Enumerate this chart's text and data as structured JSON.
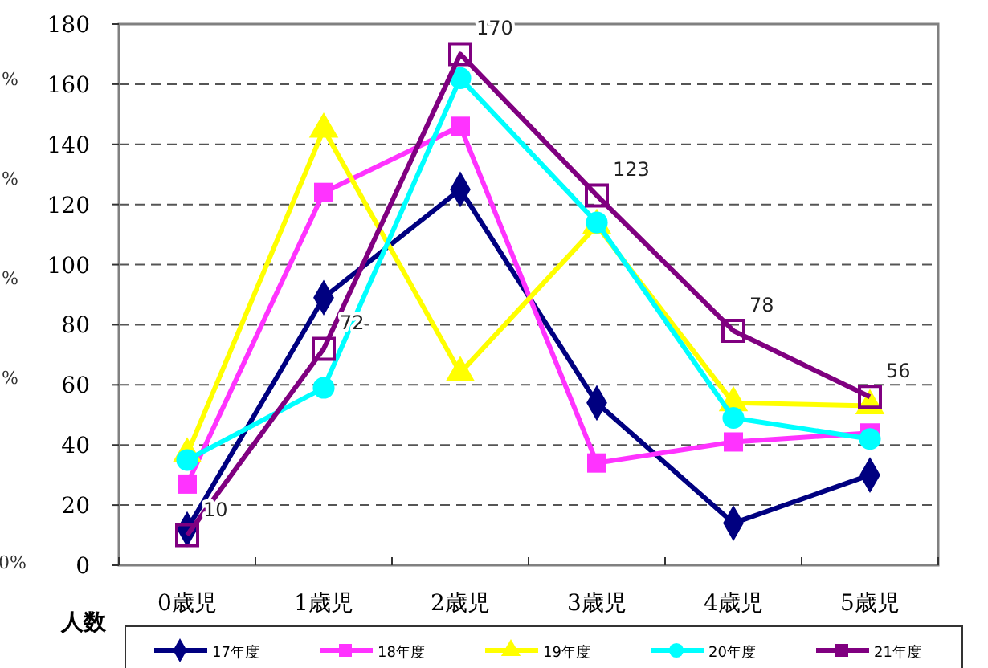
{
  "chart_data": {
    "type": "line",
    "categories": [
      "0歳児",
      "1歳児",
      "2歳児",
      "3歳児",
      "4歳児",
      "5歳児"
    ],
    "ylabel": "人数",
    "ylim": [
      0,
      180
    ],
    "yticks": [
      0,
      20,
      40,
      60,
      80,
      100,
      120,
      140,
      160,
      180
    ],
    "grid": "y",
    "legend": "bottom",
    "line_style": "solid",
    "series": [
      {
        "name": "17年度",
        "color": "#000080",
        "marker": "diamond",
        "values": [
          12,
          89,
          125,
          54,
          14,
          30
        ]
      },
      {
        "name": "18年度",
        "color": "#ff33ff",
        "marker": "square",
        "values": [
          27,
          124,
          146,
          34,
          41,
          44
        ]
      },
      {
        "name": "19年度",
        "color": "#ffff00",
        "marker": "triangle",
        "values": [
          37,
          145,
          64,
          113,
          54,
          53
        ]
      },
      {
        "name": "20年度",
        "color": "#00ffff",
        "marker": "circle",
        "values": [
          35,
          59,
          162,
          114,
          49,
          42
        ]
      },
      {
        "name": "21年度",
        "color": "#800080",
        "marker": "square",
        "values": [
          10,
          72,
          170,
          123,
          78,
          56
        ],
        "value_labels": [
          "10",
          "72",
          "170",
          "123",
          "78",
          "56"
        ]
      }
    ],
    "annotations": [
      "%",
      "%",
      "%",
      "%",
      "0%"
    ]
  }
}
